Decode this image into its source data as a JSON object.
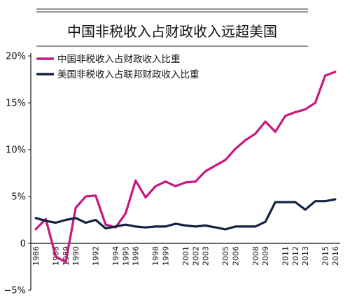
{
  "chart_data": {
    "type": "line",
    "title": "中国非税收入占财政收入远超美国",
    "xlabel": "",
    "ylabel": "",
    "x": [
      "1986",
      "1987",
      "1988",
      "1989",
      "1990",
      "1991",
      "1992",
      "1993",
      "1994",
      "1995",
      "1996",
      "1997",
      "1998",
      "1999",
      "2000",
      "2001",
      "2002",
      "2003",
      "2004",
      "2005",
      "2006",
      "2007",
      "2008",
      "2009",
      "2010",
      "2011",
      "2012",
      "2013",
      "2014",
      "2015",
      "2016"
    ],
    "x_tick_labels": [
      "1986",
      "1988",
      "1989",
      "1990",
      "1992",
      "1994",
      "1995",
      "1996",
      "1998",
      "1999",
      "2001",
      "2002",
      "2003",
      "2005",
      "2006",
      "2008",
      "2009",
      "2011",
      "2012",
      "2013",
      "2015",
      "2016"
    ],
    "y_ticks": [
      -5,
      0,
      5,
      10,
      15,
      20
    ],
    "y_tick_labels": [
      "−5%",
      "0",
      "5%",
      "10%",
      "15%",
      "20%"
    ],
    "ylim": [
      -5,
      20
    ],
    "grid": false,
    "legend_position": "top-left",
    "series": [
      {
        "name": "中国非税收入占财政收入比重",
        "color": "#c8177f",
        "values": [
          1.5,
          2.6,
          -1.4,
          -2.0,
          3.8,
          5.0,
          5.1,
          2.0,
          1.7,
          3.2,
          6.7,
          4.9,
          6.1,
          6.6,
          6.1,
          6.5,
          6.6,
          7.7,
          8.3,
          8.9,
          10.1,
          11.0,
          11.7,
          13.0,
          11.9,
          13.6,
          14.0,
          14.3,
          15.0,
          17.9,
          18.3
        ]
      },
      {
        "name": "美国非税收入占联邦财政收入比重",
        "color": "#13233f",
        "values": [
          2.7,
          2.4,
          2.2,
          2.5,
          2.7,
          2.2,
          2.5,
          1.6,
          1.8,
          2.0,
          1.8,
          1.7,
          1.8,
          1.8,
          2.1,
          1.9,
          1.8,
          1.9,
          1.7,
          1.5,
          1.8,
          1.8,
          1.8,
          2.3,
          4.4,
          4.4,
          4.4,
          3.6,
          4.5,
          4.5,
          4.7
        ]
      }
    ]
  }
}
